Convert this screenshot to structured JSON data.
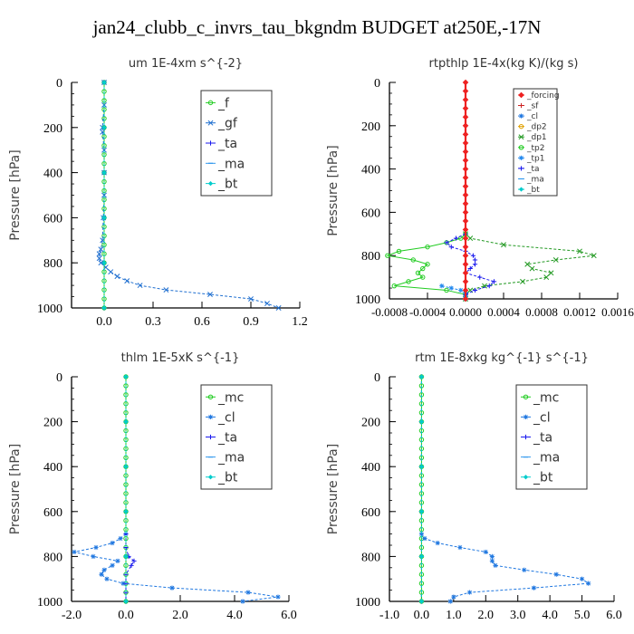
{
  "title": "jan24_clubb_c_invrs_tau_bkgndm  BUDGET at250E,-17N",
  "colors": {
    "f": "#22cc22",
    "gf": "#1f6fd0",
    "ta": "#1a1aee",
    "ma": "#3399ee",
    "bt": "#00cccc",
    "forcing": "#ee2222",
    "sf": "#cc2222",
    "cl": "#1f77e0",
    "dp2": "#e0a000",
    "dp1": "#229922",
    "tp2": "#22cc22",
    "tp1": "#2288ee",
    "mc": "#22cc22",
    "axis": "#000000"
  },
  "chart_data": [
    {
      "id": "um",
      "type": "line",
      "title": "um   1E-4xm s^{-2}",
      "ylabel": "Pressure [hPa]",
      "xlabel": "",
      "xlim": [
        -0.2,
        1.2
      ],
      "ylim": [
        1000,
        0
      ],
      "xticks": [
        0,
        0.3,
        0.6,
        0.9,
        1.2
      ],
      "xtick_labels": [
        "0.0",
        "0.3",
        "0.6",
        "0.9",
        "1.2"
      ],
      "yticks": [
        0,
        200,
        400,
        600,
        800,
        1000
      ],
      "ytick_labels": [
        "0",
        "200",
        "400",
        "600",
        "800",
        "1000"
      ],
      "legend_position": "top-right",
      "legend_labels": [
        "_f",
        "_gf",
        "_ta",
        "_ma",
        "_bt"
      ],
      "series": [
        {
          "name": "_f",
          "color_key": "f",
          "marker": "circle",
          "y": [
            0,
            40,
            80,
            120,
            160,
            200,
            240,
            280,
            320,
            360,
            400,
            440,
            480,
            520,
            560,
            600,
            640,
            680,
            720,
            760,
            800,
            840,
            880,
            920,
            960,
            1000
          ],
          "x": [
            0,
            0,
            0,
            0,
            0,
            0,
            0,
            0,
            0,
            0,
            0,
            0,
            0,
            0,
            0,
            0,
            0,
            0,
            0,
            0,
            0,
            0,
            0,
            0,
            0,
            0
          ]
        },
        {
          "name": "_gf",
          "color_key": "gf",
          "marker": "cross",
          "y": [
            0,
            100,
            200,
            220,
            300,
            400,
            500,
            600,
            700,
            740,
            760,
            780,
            800,
            820,
            840,
            860,
            880,
            900,
            920,
            940,
            960,
            980,
            1000
          ],
          "x": [
            0,
            0,
            -0.01,
            -0.01,
            0,
            0,
            0,
            -0.005,
            -0.01,
            -0.02,
            -0.03,
            -0.03,
            -0.02,
            0.01,
            0.04,
            0.08,
            0.14,
            0.22,
            0.38,
            0.65,
            0.9,
            1.0,
            1.07
          ]
        },
        {
          "name": "_ta",
          "color_key": "ta",
          "marker": "plus",
          "y": [
            0,
            200,
            400,
            600,
            800,
            1000
          ],
          "x": [
            0,
            0,
            0,
            0,
            0,
            0
          ]
        },
        {
          "name": "_ma",
          "color_key": "ma",
          "marker": "dash",
          "y": [
            0,
            200,
            400,
            600,
            800,
            1000
          ],
          "x": [
            0,
            0,
            0,
            0,
            0,
            0
          ]
        },
        {
          "name": "_bt",
          "color_key": "bt",
          "marker": "diamond",
          "y": [
            0,
            200,
            400,
            600,
            800,
            1000
          ],
          "x": [
            0,
            0,
            0,
            0,
            0,
            0
          ]
        }
      ]
    },
    {
      "id": "rtpthlp",
      "type": "line",
      "title": "rtpthlp   1E-4x(kg K)/(kg s)",
      "ylabel": "Pressure [hPa]",
      "xlabel": "",
      "xlim": [
        -0.0008,
        0.0016
      ],
      "ylim": [
        1000,
        0
      ],
      "xticks": [
        -0.0008,
        -0.0004,
        0,
        0.0004,
        0.0008,
        0.0012,
        0.0016
      ],
      "xtick_labels": [
        "-0.0008",
        "-0.0004",
        "0.0000",
        "0.0004",
        "0.0008",
        "0.0012",
        "0.0016"
      ],
      "yticks": [
        0,
        200,
        400,
        600,
        800,
        1000
      ],
      "ytick_labels": [
        "0",
        "200",
        "400",
        "600",
        "800",
        "1000"
      ],
      "legend_position": "top-right",
      "legend_labels": [
        "_forcing",
        "_sf",
        "_cl",
        "_dp2",
        "_dp1",
        "_tp2",
        "_tp1",
        "_ta",
        "_ma",
        "_bt"
      ],
      "series": [
        {
          "name": "_dp1",
          "color_key": "dp1",
          "marker": "cross",
          "y": [
            700,
            720,
            750,
            780,
            800,
            820,
            840,
            860,
            880,
            900,
            920,
            940,
            960,
            980,
            1000
          ],
          "x": [
            0,
            5e-05,
            0.0004,
            0.0012,
            0.00135,
            0.00095,
            0.00065,
            0.0007,
            0.0009,
            0.00085,
            0.0006,
            0.0002,
            5e-05,
            0,
            0
          ]
        },
        {
          "name": "_tp2",
          "color_key": "tp2",
          "marker": "circle",
          "y": [
            700,
            720,
            740,
            760,
            780,
            800,
            820,
            840,
            860,
            880,
            900,
            920,
            940,
            960,
            980,
            1000
          ],
          "x": [
            0,
            -5e-05,
            -0.0002,
            -0.0004,
            -0.0007,
            -0.00082,
            -0.00055,
            -0.0004,
            -0.00045,
            -0.0005,
            -0.00045,
            -0.0006,
            -0.00075,
            -0.0002,
            0,
            0
          ]
        },
        {
          "name": "_tp1",
          "color_key": "tp1",
          "marker": "star",
          "y": [
            940,
            950,
            960,
            970,
            980,
            990,
            1000
          ],
          "x": [
            -0.00025,
            -0.00015,
            -5e-05,
            0,
            0,
            0,
            0
          ]
        },
        {
          "name": "_ta",
          "color_key": "ta",
          "marker": "plus",
          "y": [
            700,
            720,
            740,
            760,
            780,
            800,
            820,
            840,
            860,
            880,
            900,
            920,
            940,
            960,
            980,
            1000
          ],
          "x": [
            0,
            -0.0001,
            -0.0002,
            -0.00015,
            0,
            8e-05,
            0.0001,
            0.0001,
            5e-05,
            0,
            0.00015,
            0.0003,
            0.00025,
            0.0001,
            0,
            0
          ]
        },
        {
          "name": "_forcing",
          "color_key": "forcing",
          "marker": "diamond-red",
          "y": [
            0,
            40,
            80,
            120,
            160,
            200,
            240,
            280,
            320,
            360,
            400,
            440,
            480,
            520,
            560,
            600,
            640,
            680,
            720,
            760,
            800,
            840,
            880,
            920,
            960,
            1000
          ],
          "x": [
            0,
            0,
            0,
            0,
            0,
            0,
            0,
            0,
            0,
            0,
            0,
            0,
            0,
            0,
            0,
            0,
            0,
            0,
            0,
            0,
            0,
            0,
            0,
            0,
            0,
            0
          ]
        }
      ]
    },
    {
      "id": "thlm",
      "type": "line",
      "title": "thlm   1E-5xK s^{-1}",
      "ylabel": "Pressure [hPa]",
      "xlabel": "",
      "xlim": [
        -2.0,
        6.0
      ],
      "ylim": [
        1000,
        0
      ],
      "xticks": [
        -2,
        0,
        2,
        4,
        6
      ],
      "xtick_labels": [
        "-2.0",
        "0.0",
        "2.0",
        "4.0",
        "6.0"
      ],
      "yticks": [
        0,
        200,
        400,
        600,
        800,
        1000
      ],
      "ytick_labels": [
        "0",
        "200",
        "400",
        "600",
        "800",
        "1000"
      ],
      "legend_position": "top-right",
      "legend_labels": [
        "_mc",
        "_cl",
        "_ta",
        "_ma",
        "_bt"
      ],
      "series": [
        {
          "name": "_mc",
          "color_key": "mc",
          "marker": "circle",
          "y": [
            0,
            40,
            80,
            120,
            160,
            200,
            240,
            280,
            320,
            360,
            400,
            440,
            480,
            520,
            560,
            600,
            640,
            680,
            720,
            760,
            800,
            840,
            880,
            920,
            960,
            1000
          ],
          "x": [
            0,
            0,
            0,
            0,
            0,
            0,
            0,
            0,
            0,
            0,
            0,
            0,
            0,
            0,
            0,
            0,
            0,
            0,
            0,
            0,
            0,
            0,
            0,
            0,
            0,
            0
          ]
        },
        {
          "name": "_cl",
          "color_key": "cl",
          "marker": "star",
          "y": [
            700,
            720,
            740,
            760,
            780,
            800,
            820,
            840,
            860,
            880,
            900,
            920,
            940,
            960,
            980,
            1000
          ],
          "x": [
            0,
            -0.2,
            -0.5,
            -1.1,
            -1.9,
            -1.2,
            -0.3,
            -0.5,
            -0.8,
            -0.9,
            -0.7,
            -0.1,
            1.7,
            4.5,
            5.6,
            4.3
          ]
        },
        {
          "name": "_ta",
          "color_key": "ta",
          "marker": "plus",
          "y": [
            700,
            760,
            800,
            820,
            840,
            880,
            920,
            960,
            1000
          ],
          "x": [
            0,
            0,
            0.1,
            0.3,
            0.2,
            0,
            0,
            0,
            0
          ]
        },
        {
          "name": "_ma",
          "color_key": "ma",
          "marker": "dash",
          "y": [
            0,
            200,
            400,
            600,
            800,
            1000
          ],
          "x": [
            0,
            0,
            0,
            0,
            0,
            0
          ]
        },
        {
          "name": "_bt",
          "color_key": "bt",
          "marker": "diamond",
          "y": [
            0,
            200,
            400,
            600,
            800,
            1000
          ],
          "x": [
            0,
            0,
            0,
            0,
            0,
            0
          ]
        }
      ]
    },
    {
      "id": "rtm",
      "type": "line",
      "title": "rtm   1E-8xkg kg^{-1} s^{-1}",
      "ylabel": "Pressure [hPa]",
      "xlabel": "",
      "xlim": [
        -1.0,
        6.0
      ],
      "ylim": [
        1000,
        0
      ],
      "xticks": [
        -1,
        0,
        1,
        2,
        3,
        4,
        5,
        6
      ],
      "xtick_labels": [
        "-1.0",
        "0.0",
        "1.0",
        "2.0",
        "3.0",
        "4.0",
        "5.0",
        "6.0"
      ],
      "yticks": [
        0,
        200,
        400,
        600,
        800,
        1000
      ],
      "ytick_labels": [
        "0",
        "200",
        "400",
        "600",
        "800",
        "1000"
      ],
      "legend_position": "top-right",
      "legend_labels": [
        "_mc",
        "_cl",
        "_ta",
        "_ma",
        "_bt"
      ],
      "series": [
        {
          "name": "_mc",
          "color_key": "mc",
          "marker": "circle",
          "y": [
            0,
            40,
            80,
            120,
            160,
            200,
            240,
            280,
            320,
            360,
            400,
            440,
            480,
            520,
            560,
            600,
            640,
            680,
            720,
            760,
            800,
            840,
            880,
            920,
            960,
            1000
          ],
          "x": [
            0,
            0,
            0,
            0,
            0,
            0,
            0,
            0,
            0,
            0,
            0,
            0,
            0,
            0,
            0,
            0,
            0,
            0,
            0,
            0,
            0,
            0,
            0,
            0,
            0,
            0
          ]
        },
        {
          "name": "_cl",
          "color_key": "cl",
          "marker": "star",
          "y": [
            700,
            720,
            740,
            760,
            780,
            800,
            820,
            840,
            860,
            880,
            900,
            920,
            940,
            960,
            980,
            1000
          ],
          "x": [
            0,
            0.1,
            0.5,
            1.2,
            2.0,
            2.2,
            2.2,
            2.3,
            3.2,
            4.2,
            5.0,
            5.2,
            3.5,
            1.5,
            1.0,
            0.9
          ]
        },
        {
          "name": "_ta",
          "color_key": "ta",
          "marker": "plus",
          "y": [
            0,
            200,
            400,
            600,
            800,
            1000
          ],
          "x": [
            0,
            0,
            0,
            0,
            0,
            0
          ]
        },
        {
          "name": "_ma",
          "color_key": "ma",
          "marker": "dash",
          "y": [
            0,
            200,
            400,
            600,
            800,
            1000
          ],
          "x": [
            0,
            0,
            0,
            0,
            0,
            0
          ]
        },
        {
          "name": "_bt",
          "color_key": "bt",
          "marker": "diamond",
          "y": [
            0,
            200,
            400,
            600,
            800,
            1000
          ],
          "x": [
            0,
            0,
            0,
            0,
            0,
            0
          ]
        }
      ]
    }
  ]
}
